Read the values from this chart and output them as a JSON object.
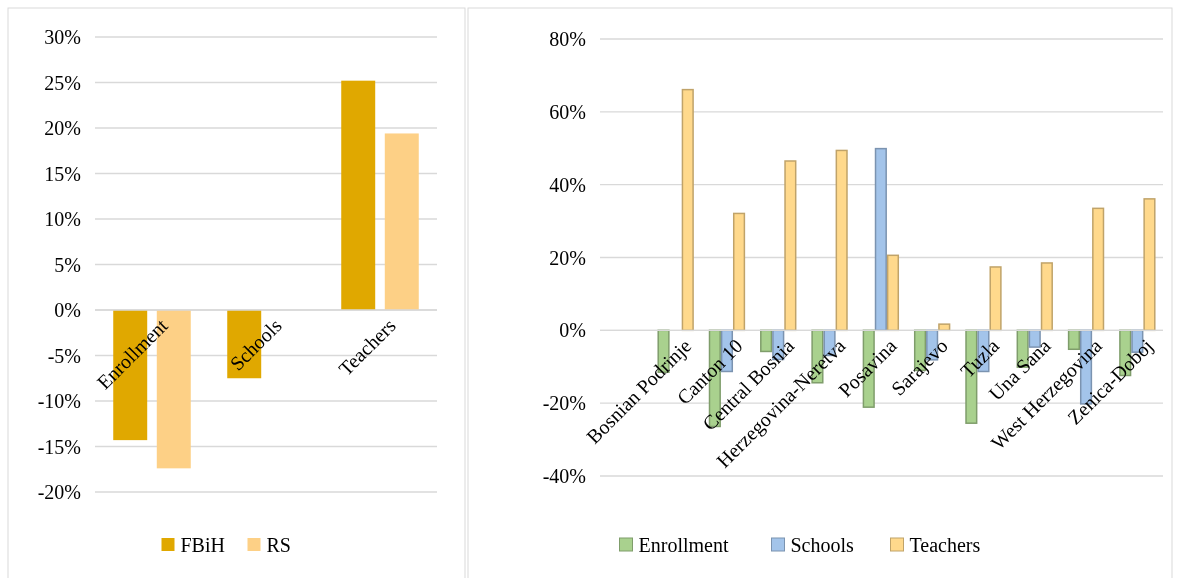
{
  "chart_data": [
    {
      "type": "bar",
      "categories": [
        "Enrollment",
        "Schools",
        "Teachers"
      ],
      "series": [
        {
          "name": "FBiH",
          "color": "#e0a800",
          "values": [
            -14.3,
            -7.5,
            25.2
          ]
        },
        {
          "name": "RS",
          "color": "#fdd086",
          "values": [
            -17.4,
            null,
            19.4
          ]
        }
      ],
      "ylim": [
        -20,
        30
      ],
      "yticks": [
        {
          "value": -20,
          "label": "-20%"
        },
        {
          "value": -15,
          "label": "-15%"
        },
        {
          "value": -10,
          "label": "-10%"
        },
        {
          "value": -5,
          "label": "-5%"
        },
        {
          "value": 0,
          "label": "0%"
        },
        {
          "value": 5,
          "label": "5%"
        },
        {
          "value": 10,
          "label": "10%"
        },
        {
          "value": 15,
          "label": "15%"
        },
        {
          "value": 20,
          "label": "20%"
        },
        {
          "value": 25,
          "label": "25%"
        },
        {
          "value": 30,
          "label": "30%"
        }
      ],
      "grid": "y",
      "legend": "bottom"
    },
    {
      "type": "bar",
      "categories": [
        "Bosnian Podrinje",
        "Canton 10",
        "Central Bosnia",
        "Herzegovina-Neretva",
        "Posavina",
        "Sarajevo",
        "Tuzla",
        "Una Sana",
        "West Herzegovina",
        "Zenica-Doboj"
      ],
      "series": [
        {
          "name": "Enrollment",
          "color": "#a9d18e",
          "values": [
            -11.5,
            -26.4,
            -5.8,
            -14.4,
            -21.1,
            -11.0,
            -25.5,
            -10.1,
            -5.2,
            -12.4
          ]
        },
        {
          "name": "Schools",
          "color": "#a3c4ea",
          "values": [
            null,
            -11.3,
            -8.0,
            -6.9,
            49.9,
            -8.1,
            -11.3,
            -4.6,
            -20.2,
            -6.0
          ]
        },
        {
          "name": "Teachers",
          "color": "#ffd98c",
          "values": [
            66.1,
            32.1,
            46.5,
            49.4,
            20.6,
            1.7,
            17.4,
            18.5,
            33.5,
            36.1
          ]
        }
      ],
      "ylim": [
        -40,
        80
      ],
      "yticks": [
        {
          "value": -40,
          "label": "-40%"
        },
        {
          "value": -20,
          "label": "-20%"
        },
        {
          "value": 0,
          "label": "0%"
        },
        {
          "value": 20,
          "label": "20%"
        },
        {
          "value": 40,
          "label": "40%"
        },
        {
          "value": 60,
          "label": "60%"
        },
        {
          "value": 80,
          "label": "80%"
        }
      ],
      "grid": "y",
      "legend": "bottom"
    }
  ]
}
